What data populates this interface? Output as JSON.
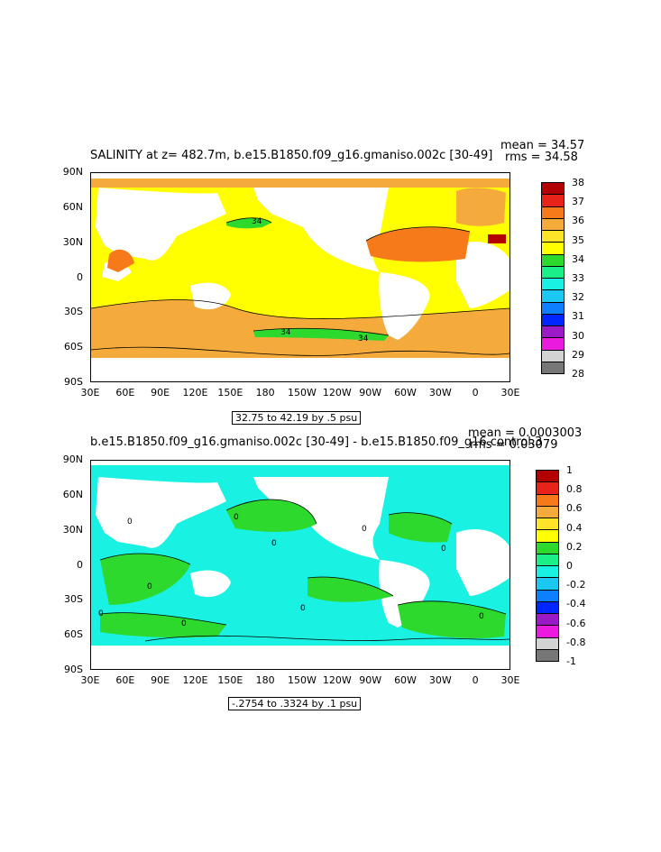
{
  "panels": [
    {
      "title": "SALINITY at z= 482.7m, b.e15.B1850.f09_g16.gmaniso.002c [30-49]",
      "stats_mean": "mean = 34.57",
      "stats_rms": "rms = 34.58",
      "range_label": "32.75 to 42.19 by .5 psu",
      "contour_labels": [
        "34",
        "34",
        "34"
      ],
      "colorbar": {
        "labels": [
          "38",
          "37",
          "36",
          "35",
          "34",
          "33",
          "32",
          "31",
          "30",
          "29",
          "28"
        ],
        "colors": [
          "#b30000",
          "#e8231a",
          "#f77a1a",
          "#f5ab3c",
          "#fde428",
          "#ffff00",
          "#2ed92e",
          "#1aef88",
          "#19f2e3",
          "#1ac8f2",
          "#0d80ff",
          "#0026ff",
          "#9a1ac8",
          "#ea1ade",
          "#d3d3d3",
          "#777777"
        ]
      }
    },
    {
      "title": "b.e15.B1850.f09_g16.gmaniso.002c [30-49] - b.e15.B1850.f09_g16.control.3",
      "stats_mean": "mean = 0.0003003",
      "stats_rms": "rms = 0.03079",
      "range_label": "-.2754 to .3324 by .1 psu",
      "contour_labels": [
        "0",
        "0",
        "0",
        "0",
        "0",
        "0",
        "0",
        "0",
        "0",
        "0"
      ],
      "colorbar": {
        "labels": [
          "1",
          "0.8",
          "0.6",
          "0.4",
          "0.2",
          "0",
          "-0.2",
          "-0.4",
          "-0.6",
          "-0.8",
          "-1"
        ],
        "colors": [
          "#b30000",
          "#e8231a",
          "#f77a1a",
          "#f5ab3c",
          "#fde428",
          "#ffff00",
          "#2ed92e",
          "#1aef88",
          "#19f2e3",
          "#1ac8f2",
          "#0d80ff",
          "#0026ff",
          "#9a1ac8",
          "#ea1ade",
          "#d3d3d3",
          "#777777"
        ]
      }
    }
  ],
  "axes": {
    "lat_labels": [
      "90N",
      "60N",
      "30N",
      "0",
      "30S",
      "60S",
      "90S"
    ],
    "lon_labels": [
      "30E",
      "60E",
      "90E",
      "120E",
      "150E",
      "180",
      "150W",
      "120W",
      "90W",
      "60W",
      "30W",
      "0",
      "30E"
    ]
  }
}
